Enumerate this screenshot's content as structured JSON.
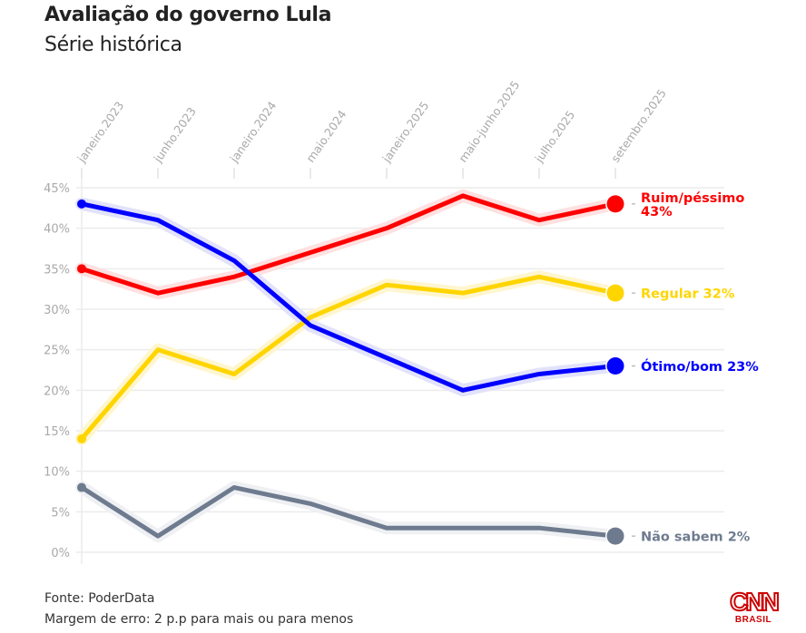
{
  "header": {
    "title": "Avaliação do governo Lula",
    "subtitle": "Série histórica"
  },
  "footer": {
    "source": "Fonte: PoderData",
    "margin": "Margem de erro: 2 p.p para mais ou para menos"
  },
  "logo": {
    "name": "CNN",
    "sub": "BRASIL"
  },
  "chart_data": {
    "type": "line",
    "title": "Avaliação do governo Lula",
    "subtitle": "Série histórica",
    "xlabel": "",
    "ylabel": "",
    "x": [
      "janeiro.2023",
      "junho.2023",
      "janeiro.2024",
      "maio.2024",
      "janeiro.2025",
      "maio-junho.2025",
      "julho.2025",
      "setembro.2025"
    ],
    "ylim": [
      0,
      45
    ],
    "yticks": [
      0,
      5,
      10,
      15,
      20,
      25,
      30,
      35,
      40,
      45
    ],
    "ytick_labels": [
      "0%",
      "5%",
      "10%",
      "15%",
      "20%",
      "25%",
      "30%",
      "35%",
      "40%",
      "45%"
    ],
    "grid": true,
    "legend": "direct labels at line ends (right)",
    "series": [
      {
        "name": "Ruim/péssimo",
        "color": "#ff0000",
        "halo": "#ffe0e0",
        "values": [
          35,
          32,
          34,
          37,
          40,
          44,
          41,
          43
        ],
        "end_label": [
          "Ruim/péssimo",
          "43%"
        ]
      },
      {
        "name": "Regular",
        "color": "#ffd500",
        "halo": "#fff6d0",
        "values": [
          14,
          25,
          22,
          29,
          33,
          32,
          34,
          32
        ],
        "end_label": [
          "Regular 32%"
        ]
      },
      {
        "name": "Ótimo/bom",
        "color": "#0000ff",
        "halo": "#e2e2fb",
        "values": [
          43,
          41,
          36,
          28,
          24,
          20,
          22,
          23
        ],
        "end_label": [
          "Ótimo/bom 23%"
        ]
      },
      {
        "name": "Não sabem",
        "color": "#6e7b8f",
        "halo": "#eff0f3",
        "values": [
          8,
          2,
          8,
          6,
          3,
          3,
          3,
          2
        ],
        "end_label": [
          "Não sabem 2%"
        ]
      }
    ]
  }
}
